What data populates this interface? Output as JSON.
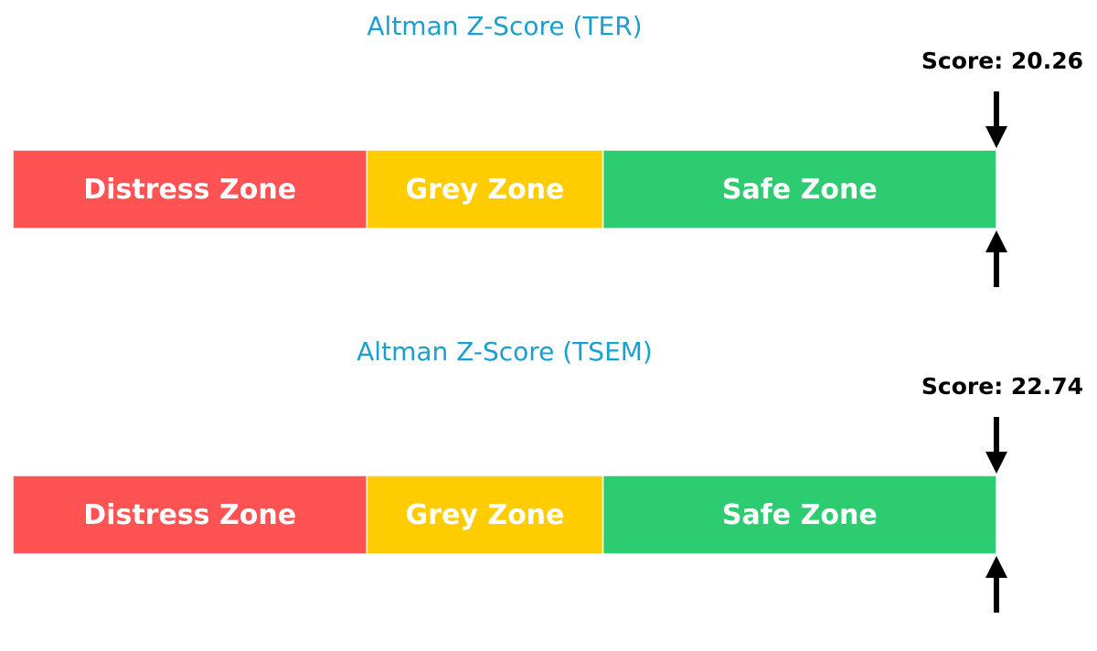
{
  "chart_data": [
    {
      "type": "gauge-bar",
      "title": "Altman Z-Score (TER)",
      "score_label": "Score: 20.26",
      "score": 20.26,
      "xlim": [
        0,
        5
      ],
      "zones": [
        {
          "label": "Distress Zone",
          "from": 0,
          "to": 1.8,
          "color": "#ff5252"
        },
        {
          "label": "Grey Zone",
          "from": 1.8,
          "to": 3.0,
          "color": "#ffcc00"
        },
        {
          "label": "Safe Zone",
          "from": 3.0,
          "to": 5,
          "color": "#2ecc71"
        }
      ]
    },
    {
      "type": "gauge-bar",
      "title": "Altman Z-Score (TSEM)",
      "score_label": "Score: 22.74",
      "score": 22.74,
      "xlim": [
        0,
        5
      ],
      "zones": [
        {
          "label": "Distress Zone",
          "from": 0,
          "to": 1.8,
          "color": "#ff5252"
        },
        {
          "label": "Grey Zone",
          "from": 1.8,
          "to": 3.0,
          "color": "#ffcc00"
        },
        {
          "label": "Safe Zone",
          "from": 3.0,
          "to": 5,
          "color": "#2ecc71"
        }
      ]
    }
  ]
}
